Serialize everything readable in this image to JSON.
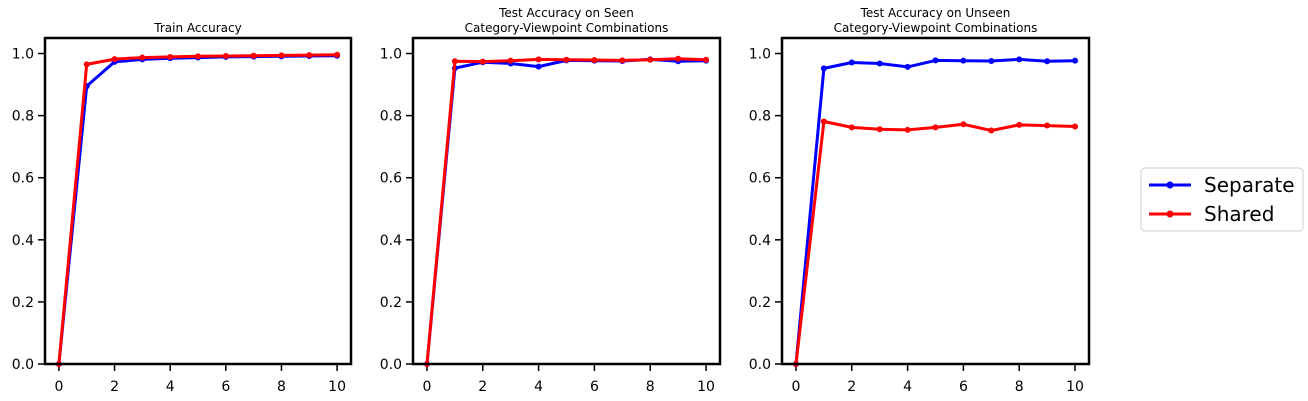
{
  "chart_data": [
    {
      "type": "line",
      "title_lines": [
        "Train Accuracy"
      ],
      "xlim": [
        -0.5,
        10.5
      ],
      "ylim": [
        0,
        1.05
      ],
      "xticks": [
        0,
        2,
        4,
        6,
        8,
        10
      ],
      "yticks": [
        0.0,
        0.2,
        0.4,
        0.6,
        0.8,
        1.0
      ],
      "xtick_labels": [
        "0",
        "2",
        "4",
        "6",
        "8",
        "10"
      ],
      "ytick_labels": [
        "0.0",
        "0.2",
        "0.4",
        "0.6",
        "0.8",
        "1.0"
      ],
      "x": [
        0,
        1,
        2,
        3,
        4,
        5,
        6,
        7,
        8,
        9,
        10
      ],
      "series": [
        {
          "name": "Separate",
          "color": "#0000ff",
          "values": [
            0.0,
            0.895,
            0.973,
            0.981,
            0.985,
            0.987,
            0.989,
            0.99,
            0.991,
            0.992,
            0.993
          ]
        },
        {
          "name": "Shared",
          "color": "#ff0000",
          "values": [
            0.0,
            0.965,
            0.982,
            0.987,
            0.989,
            0.991,
            0.992,
            0.993,
            0.994,
            0.995,
            0.996
          ]
        }
      ]
    },
    {
      "type": "line",
      "title_lines": [
        "Test Accuracy on Seen",
        "Category-Viewpoint Combinations"
      ],
      "xlim": [
        -0.5,
        10.5
      ],
      "ylim": [
        0,
        1.05
      ],
      "xticks": [
        0,
        2,
        4,
        6,
        8,
        10
      ],
      "yticks": [
        0.0,
        0.2,
        0.4,
        0.6,
        0.8,
        1.0
      ],
      "xtick_labels": [
        "0",
        "2",
        "4",
        "6",
        "8",
        "10"
      ],
      "ytick_labels": [
        "0.0",
        "0.2",
        "0.4",
        "0.6",
        "0.8",
        "1.0"
      ],
      "x": [
        0,
        1,
        2,
        3,
        4,
        5,
        6,
        7,
        8,
        9,
        10
      ],
      "series": [
        {
          "name": "Separate",
          "color": "#0000ff",
          "values": [
            0.0,
            0.953,
            0.972,
            0.968,
            0.958,
            0.978,
            0.977,
            0.976,
            0.981,
            0.975,
            0.977
          ]
        },
        {
          "name": "Shared",
          "color": "#ff0000",
          "values": [
            0.0,
            0.975,
            0.974,
            0.977,
            0.981,
            0.98,
            0.979,
            0.978,
            0.98,
            0.983,
            0.98
          ]
        }
      ]
    },
    {
      "type": "line",
      "title_lines": [
        "Test Accuracy on Unseen",
        "Category-Viewpoint Combinations"
      ],
      "xlim": [
        -0.5,
        10.5
      ],
      "ylim": [
        0,
        1.05
      ],
      "xticks": [
        0,
        2,
        4,
        6,
        8,
        10
      ],
      "yticks": [
        0.0,
        0.2,
        0.4,
        0.6,
        0.8,
        1.0
      ],
      "xtick_labels": [
        "0",
        "2",
        "4",
        "6",
        "8",
        "10"
      ],
      "ytick_labels": [
        "0.0",
        "0.2",
        "0.4",
        "0.6",
        "0.8",
        "1.0"
      ],
      "x": [
        0,
        1,
        2,
        3,
        4,
        5,
        6,
        7,
        8,
        9,
        10
      ],
      "series": [
        {
          "name": "Separate",
          "color": "#0000ff",
          "values": [
            0.0,
            0.952,
            0.971,
            0.968,
            0.957,
            0.978,
            0.977,
            0.976,
            0.981,
            0.975,
            0.977
          ]
        },
        {
          "name": "Shared",
          "color": "#ff0000",
          "values": [
            0.0,
            0.781,
            0.762,
            0.756,
            0.754,
            0.762,
            0.772,
            0.752,
            0.77,
            0.768,
            0.765
          ]
        }
      ]
    }
  ],
  "legend": {
    "placement": "right",
    "entries": [
      {
        "label": "Separate",
        "color": "#0000ff"
      },
      {
        "label": "Shared",
        "color": "#ff0000"
      }
    ]
  }
}
